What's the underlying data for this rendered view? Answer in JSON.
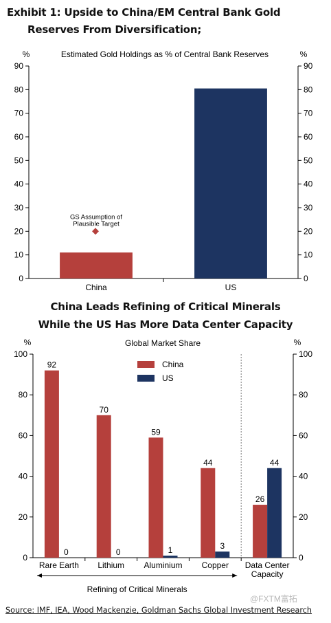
{
  "exhibit_title_line1": "Exhibit 1: Upside to China/EM Central Bank Gold",
  "exhibit_title_line2": "Reserves From Diversification;",
  "chart2_title_line1": "China Leads Refining of Critical Minerals",
  "chart2_title_line2": "While the US Has More Data Center Capacity",
  "source": "Source: IMF, IEA, Wood Mackenzie, Goldman Sachs Global Investment Research",
  "watermark": "@FXTM富拓",
  "colors": {
    "china": "#b5403c",
    "us": "#1d3461"
  },
  "chart_data": [
    {
      "type": "bar",
      "subtitle": "Estimated Gold Holdings as % of Central Bank Reserves",
      "ylabel_left": "%",
      "ylabel_right": "%",
      "ylim": [
        0,
        90
      ],
      "yticks": [
        0,
        10,
        20,
        30,
        40,
        50,
        60,
        70,
        80,
        90
      ],
      "categories": [
        "China",
        "US"
      ],
      "values": [
        11,
        80.5
      ],
      "bar_colors": [
        "#b5403c",
        "#1d3461"
      ],
      "annotation": {
        "text_line1": "GS Assumption of",
        "text_line2": "Plausible Target",
        "category": "China",
        "value": 20,
        "marker": "diamond"
      },
      "grid": false
    },
    {
      "type": "bar",
      "subtitle": "Global Market Share",
      "ylabel_left": "%",
      "ylabel_right": "%",
      "ylim": [
        0,
        100
      ],
      "yticks": [
        0,
        20,
        40,
        60,
        80,
        100
      ],
      "categories": [
        "Rare Earth",
        "Lithium",
        "Aluminium",
        "Copper",
        "Data Center Capacity"
      ],
      "category_lines": [
        [
          "Rare Earth"
        ],
        [
          "Lithium"
        ],
        [
          "Aluminium"
        ],
        [
          "Copper"
        ],
        [
          "Data Center",
          "Capacity"
        ]
      ],
      "series": [
        {
          "name": "China",
          "values": [
            92,
            70,
            59,
            44,
            26
          ]
        },
        {
          "name": "US",
          "values": [
            0,
            0,
            1,
            3,
            44
          ]
        }
      ],
      "value_labels": {
        "China": [
          "92",
          "70",
          "59",
          "44",
          "26"
        ],
        "US": [
          "0",
          "0",
          "1",
          "3",
          "44"
        ]
      },
      "legend_position": "top-center",
      "bracket_label": "Refining of Critical Minerals",
      "grid": false
    }
  ]
}
